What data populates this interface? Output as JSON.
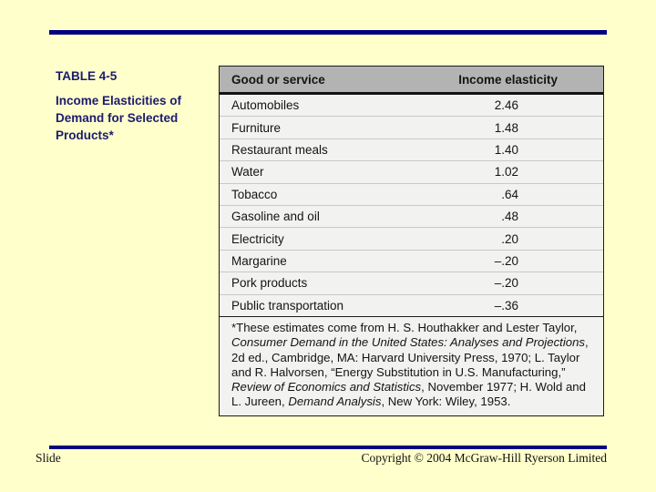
{
  "slide": {
    "colors": {
      "background": "#FFFFCC",
      "accent_rule": "#000080",
      "title_text": "#1b1b6e",
      "table_header_bg": "#b3b3b3",
      "table_bg": "#f2f2f0"
    },
    "title": {
      "label": "TABLE 4-5",
      "caption": "Income Elasticities of Demand for Selected Products*"
    },
    "table": {
      "columns": [
        "Good or service",
        "Income elasticity"
      ],
      "rows": [
        {
          "good": "Automobiles",
          "elasticity": "2.46"
        },
        {
          "good": "Furniture",
          "elasticity": "1.48"
        },
        {
          "good": "Restaurant meals",
          "elasticity": "1.40"
        },
        {
          "good": "Water",
          "elasticity": "1.02"
        },
        {
          "good": "Tobacco",
          "elasticity": ".64"
        },
        {
          "good": "Gasoline and oil",
          "elasticity": ".48"
        },
        {
          "good": "Electricity",
          "elasticity": ".20"
        },
        {
          "good": "Margarine",
          "elasticity": "–.20"
        },
        {
          "good": "Pork products",
          "elasticity": "–.20"
        },
        {
          "good": "Public transportation",
          "elasticity": "–.36"
        }
      ],
      "footnote_segments": [
        {
          "text": "*These estimates come from H. S. Houthakker and Lester Taylor, ",
          "italic": false
        },
        {
          "text": "Consumer Demand in the United States: Analyses and Projections",
          "italic": true
        },
        {
          "text": ", 2d ed., Cambridge, MA: Harvard University Press, 1970; L. Taylor and R. Halvorsen, “Energy Substitution in U.S. Manufacturing,” ",
          "italic": false
        },
        {
          "text": "Review of Economics and Statistics",
          "italic": true
        },
        {
          "text": ", November 1977; H. Wold and L. Jureen, ",
          "italic": false
        },
        {
          "text": "Demand Analysis",
          "italic": true
        },
        {
          "text": ", New York: Wiley, 1953.",
          "italic": false
        }
      ]
    },
    "footer": {
      "left": "Slide",
      "right": "Copyright © 2004 McGraw-Hill Ryerson Limited"
    }
  }
}
